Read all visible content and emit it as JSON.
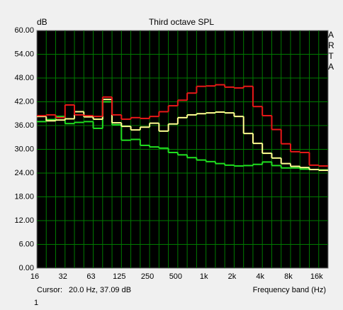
{
  "chart_data": {
    "type": "step",
    "title": "Third octave SPL",
    "y_label": "dB",
    "side_label": "ARTA",
    "x_label": "Frequency band (Hz)",
    "cursor_label": "Cursor:",
    "cursor_value": "20.0 Hz, 37.09 dB",
    "footer": "1",
    "categories": [
      "16",
      null,
      null,
      "32",
      null,
      null,
      "63",
      null,
      null,
      "125",
      null,
      null,
      "250",
      null,
      null,
      "500",
      null,
      null,
      "1k",
      null,
      null,
      "2k",
      null,
      null,
      "4k",
      null,
      null,
      "8k",
      null,
      null,
      "16k"
    ],
    "ylim": [
      0,
      60
    ],
    "yticks": [
      {
        "value": 0,
        "label": "0.00"
      },
      {
        "value": 6,
        "label": "6.00"
      },
      {
        "value": 12,
        "label": "12.00"
      },
      {
        "value": 18,
        "label": "18.00"
      },
      {
        "value": 24,
        "label": "24.00"
      },
      {
        "value": 30,
        "label": "30.00"
      },
      {
        "value": 36,
        "label": "36.00"
      },
      {
        "value": 42,
        "label": "42.00"
      },
      {
        "value": 48,
        "label": "48.00"
      },
      {
        "value": 54,
        "label": "54.00"
      },
      {
        "value": 60,
        "label": "60.00"
      }
    ],
    "grid": true,
    "series": [
      {
        "color": "#20e020",
        "values": [
          37,
          37.5,
          38.3,
          36.5,
          36.8,
          37,
          35.3,
          42,
          36.2,
          32.3,
          32.5,
          31,
          30.6,
          30.3,
          29.2,
          28.6,
          27.9,
          27.3,
          26.9,
          26.4,
          26,
          25.8,
          25.9,
          26.2,
          26.8,
          25.9,
          25.3,
          25.3,
          25,
          24.9,
          24.8
        ]
      },
      {
        "color": "#ffff90",
        "values": [
          38.3,
          37.2,
          37.4,
          37.7,
          39.5,
          38.2,
          37.6,
          42.6,
          36.7,
          35.8,
          34.9,
          35.6,
          36.6,
          34.6,
          36.4,
          38,
          38.7,
          39,
          39.2,
          39.4,
          39.2,
          38.3,
          34,
          31.5,
          29,
          27.8,
          26.4,
          25.7,
          25.4,
          24.9,
          24.7
        ]
      },
      {
        "color": "#e81818",
        "values": [
          38.5,
          38.7,
          38,
          41.2,
          38.7,
          38.5,
          38.3,
          43.2,
          38.7,
          37.6,
          38,
          37.8,
          38.3,
          39.5,
          41,
          42.4,
          44.2,
          45.9,
          46,
          46.3,
          45.7,
          45.5,
          45.9,
          40.8,
          38.5,
          35,
          31.4,
          29.4,
          29.2,
          26,
          25.8
        ]
      }
    ]
  }
}
